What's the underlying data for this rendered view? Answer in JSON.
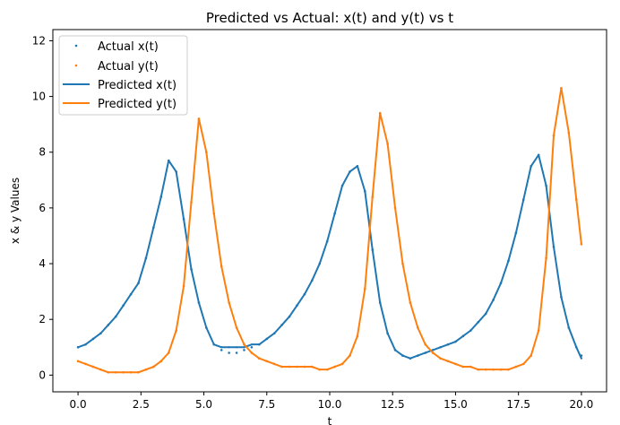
{
  "chart_data": {
    "type": "scatter",
    "title": "Predicted vs Actual: x(t) and y(t) vs t",
    "xlabel": "t",
    "ylabel": "x & y Values",
    "xlim": [
      -1.0,
      21.0
    ],
    "ylim": [
      -0.6,
      12.4
    ],
    "xticks": [
      0.0,
      2.5,
      5.0,
      7.5,
      10.0,
      12.5,
      15.0,
      17.5,
      20.0
    ],
    "xtick_labels": [
      "0.0",
      "2.5",
      "5.0",
      "7.5",
      "10.0",
      "12.5",
      "15.0",
      "17.5",
      "20.0"
    ],
    "yticks": [
      0,
      2,
      4,
      6,
      8,
      10,
      12
    ],
    "ytick_labels": [
      "0",
      "2",
      "4",
      "6",
      "8",
      "10",
      "12"
    ],
    "grid": false,
    "legend_position": "top-left",
    "series": [
      {
        "name": "Actual x(t)",
        "kind": "scatter",
        "color": "#1f77b4",
        "points": [
          [
            0.0,
            1.0
          ],
          [
            0.3,
            1.1
          ],
          [
            0.6,
            1.3
          ],
          [
            0.9,
            1.5
          ],
          [
            1.2,
            1.8
          ],
          [
            1.5,
            2.1
          ],
          [
            1.8,
            2.5
          ],
          [
            2.1,
            2.9
          ],
          [
            2.4,
            3.3
          ],
          [
            2.7,
            4.2
          ],
          [
            3.0,
            5.3
          ],
          [
            3.3,
            6.4
          ],
          [
            3.6,
            7.7
          ],
          [
            3.9,
            7.3
          ],
          [
            4.2,
            5.6
          ],
          [
            4.5,
            3.8
          ],
          [
            4.8,
            2.6
          ],
          [
            5.1,
            1.7
          ],
          [
            5.4,
            1.1
          ],
          [
            5.7,
            0.9
          ],
          [
            6.0,
            0.8
          ],
          [
            6.3,
            0.8
          ],
          [
            6.6,
            0.9
          ],
          [
            6.9,
            1.0
          ],
          [
            7.2,
            1.1
          ],
          [
            7.5,
            1.3
          ],
          [
            7.8,
            1.5
          ],
          [
            8.1,
            1.8
          ],
          [
            8.4,
            2.1
          ],
          [
            8.7,
            2.5
          ],
          [
            9.0,
            2.9
          ],
          [
            9.3,
            3.4
          ],
          [
            9.6,
            4.0
          ],
          [
            9.9,
            4.8
          ],
          [
            10.2,
            5.8
          ],
          [
            10.5,
            6.8
          ],
          [
            10.8,
            7.3
          ],
          [
            11.1,
            7.5
          ],
          [
            11.4,
            6.6
          ],
          [
            11.7,
            4.5
          ],
          [
            12.0,
            2.6
          ],
          [
            12.3,
            1.5
          ],
          [
            12.6,
            0.9
          ],
          [
            12.9,
            0.7
          ],
          [
            13.2,
            0.6
          ],
          [
            13.5,
            0.7
          ],
          [
            13.8,
            0.8
          ],
          [
            14.1,
            0.9
          ],
          [
            14.4,
            1.0
          ],
          [
            14.7,
            1.1
          ],
          [
            15.0,
            1.2
          ],
          [
            15.3,
            1.4
          ],
          [
            15.6,
            1.6
          ],
          [
            15.9,
            1.9
          ],
          [
            16.2,
            2.2
          ],
          [
            16.5,
            2.7
          ],
          [
            16.8,
            3.3
          ],
          [
            17.1,
            4.1
          ],
          [
            17.4,
            5.1
          ],
          [
            17.7,
            6.3
          ],
          [
            18.0,
            7.5
          ],
          [
            18.3,
            7.9
          ],
          [
            18.6,
            6.8
          ],
          [
            18.9,
            4.6
          ],
          [
            19.2,
            2.8
          ],
          [
            19.5,
            1.7
          ],
          [
            19.8,
            1.0
          ],
          [
            20.0,
            0.7
          ]
        ]
      },
      {
        "name": "Actual y(t)",
        "kind": "scatter",
        "color": "#ff7f0e",
        "points": [
          [
            0.0,
            0.5
          ],
          [
            0.3,
            0.4
          ],
          [
            0.6,
            0.3
          ],
          [
            0.9,
            0.2
          ],
          [
            1.2,
            0.1
          ],
          [
            1.5,
            0.1
          ],
          [
            1.8,
            0.1
          ],
          [
            2.1,
            0.1
          ],
          [
            2.4,
            0.1
          ],
          [
            2.7,
            0.2
          ],
          [
            3.0,
            0.3
          ],
          [
            3.3,
            0.5
          ],
          [
            3.6,
            0.8
          ],
          [
            3.9,
            1.6
          ],
          [
            4.2,
            3.2
          ],
          [
            4.5,
            6.2
          ],
          [
            4.8,
            9.2
          ],
          [
            5.1,
            8.0
          ],
          [
            5.4,
            5.8
          ],
          [
            5.7,
            3.9
          ],
          [
            6.0,
            2.6
          ],
          [
            6.3,
            1.7
          ],
          [
            6.6,
            1.1
          ],
          [
            6.9,
            0.8
          ],
          [
            7.2,
            0.6
          ],
          [
            7.5,
            0.5
          ],
          [
            7.8,
            0.4
          ],
          [
            8.1,
            0.3
          ],
          [
            8.4,
            0.3
          ],
          [
            8.7,
            0.3
          ],
          [
            9.0,
            0.3
          ],
          [
            9.3,
            0.3
          ],
          [
            9.6,
            0.2
          ],
          [
            9.9,
            0.2
          ],
          [
            10.2,
            0.3
          ],
          [
            10.5,
            0.4
          ],
          [
            10.8,
            0.7
          ],
          [
            11.1,
            1.4
          ],
          [
            11.4,
            3.1
          ],
          [
            11.7,
            6.4
          ],
          [
            12.0,
            9.4
          ],
          [
            12.3,
            8.3
          ],
          [
            12.6,
            6.0
          ],
          [
            12.9,
            4.0
          ],
          [
            13.2,
            2.6
          ],
          [
            13.5,
            1.7
          ],
          [
            13.8,
            1.1
          ],
          [
            14.1,
            0.8
          ],
          [
            14.4,
            0.6
          ],
          [
            14.7,
            0.5
          ],
          [
            15.0,
            0.4
          ],
          [
            15.3,
            0.3
          ],
          [
            15.6,
            0.3
          ],
          [
            15.9,
            0.2
          ],
          [
            16.2,
            0.2
          ],
          [
            16.5,
            0.2
          ],
          [
            16.8,
            0.2
          ],
          [
            17.1,
            0.2
          ],
          [
            17.4,
            0.3
          ],
          [
            17.7,
            0.4
          ],
          [
            18.0,
            0.7
          ],
          [
            18.3,
            1.6
          ],
          [
            18.6,
            4.2
          ],
          [
            18.9,
            8.6
          ],
          [
            19.2,
            10.3
          ],
          [
            19.5,
            8.7
          ],
          [
            19.8,
            6.3
          ],
          [
            20.0,
            4.7
          ]
        ]
      },
      {
        "name": "Predicted x(t)",
        "kind": "line",
        "color": "#1f77b4",
        "points": [
          [
            0.0,
            1.0
          ],
          [
            0.3,
            1.1
          ],
          [
            0.6,
            1.3
          ],
          [
            0.9,
            1.5
          ],
          [
            1.2,
            1.8
          ],
          [
            1.5,
            2.1
          ],
          [
            1.8,
            2.5
          ],
          [
            2.1,
            2.9
          ],
          [
            2.4,
            3.3
          ],
          [
            2.7,
            4.2
          ],
          [
            3.0,
            5.3
          ],
          [
            3.3,
            6.4
          ],
          [
            3.6,
            7.7
          ],
          [
            3.9,
            7.3
          ],
          [
            4.2,
            5.6
          ],
          [
            4.5,
            3.8
          ],
          [
            4.8,
            2.6
          ],
          [
            5.1,
            1.7
          ],
          [
            5.4,
            1.1
          ],
          [
            5.7,
            1.0
          ],
          [
            6.0,
            1.0
          ],
          [
            6.3,
            1.0
          ],
          [
            6.6,
            1.0
          ],
          [
            6.9,
            1.1
          ],
          [
            7.2,
            1.1
          ],
          [
            7.5,
            1.3
          ],
          [
            7.8,
            1.5
          ],
          [
            8.1,
            1.8
          ],
          [
            8.4,
            2.1
          ],
          [
            8.7,
            2.5
          ],
          [
            9.0,
            2.9
          ],
          [
            9.3,
            3.4
          ],
          [
            9.6,
            4.0
          ],
          [
            9.9,
            4.8
          ],
          [
            10.2,
            5.8
          ],
          [
            10.5,
            6.8
          ],
          [
            10.8,
            7.3
          ],
          [
            11.1,
            7.5
          ],
          [
            11.4,
            6.6
          ],
          [
            11.7,
            4.5
          ],
          [
            12.0,
            2.6
          ],
          [
            12.3,
            1.5
          ],
          [
            12.6,
            0.9
          ],
          [
            12.9,
            0.7
          ],
          [
            13.2,
            0.6
          ],
          [
            13.5,
            0.7
          ],
          [
            13.8,
            0.8
          ],
          [
            14.1,
            0.9
          ],
          [
            14.4,
            1.0
          ],
          [
            14.7,
            1.1
          ],
          [
            15.0,
            1.2
          ],
          [
            15.3,
            1.4
          ],
          [
            15.6,
            1.6
          ],
          [
            15.9,
            1.9
          ],
          [
            16.2,
            2.2
          ],
          [
            16.5,
            2.7
          ],
          [
            16.8,
            3.3
          ],
          [
            17.1,
            4.1
          ],
          [
            17.4,
            5.1
          ],
          [
            17.7,
            6.3
          ],
          [
            18.0,
            7.5
          ],
          [
            18.3,
            7.9
          ],
          [
            18.6,
            6.8
          ],
          [
            18.9,
            4.6
          ],
          [
            19.2,
            2.8
          ],
          [
            19.5,
            1.7
          ],
          [
            19.8,
            1.0
          ],
          [
            20.0,
            0.6
          ]
        ]
      },
      {
        "name": "Predicted y(t)",
        "kind": "line",
        "color": "#ff7f0e",
        "points": [
          [
            0.0,
            0.5
          ],
          [
            0.3,
            0.4
          ],
          [
            0.6,
            0.3
          ],
          [
            0.9,
            0.2
          ],
          [
            1.2,
            0.1
          ],
          [
            1.5,
            0.1
          ],
          [
            1.8,
            0.1
          ],
          [
            2.1,
            0.1
          ],
          [
            2.4,
            0.1
          ],
          [
            2.7,
            0.2
          ],
          [
            3.0,
            0.3
          ],
          [
            3.3,
            0.5
          ],
          [
            3.6,
            0.8
          ],
          [
            3.9,
            1.6
          ],
          [
            4.2,
            3.2
          ],
          [
            4.5,
            6.2
          ],
          [
            4.8,
            9.2
          ],
          [
            5.1,
            8.0
          ],
          [
            5.4,
            5.8
          ],
          [
            5.7,
            3.9
          ],
          [
            6.0,
            2.6
          ],
          [
            6.3,
            1.7
          ],
          [
            6.6,
            1.1
          ],
          [
            6.9,
            0.8
          ],
          [
            7.2,
            0.6
          ],
          [
            7.5,
            0.5
          ],
          [
            7.8,
            0.4
          ],
          [
            8.1,
            0.3
          ],
          [
            8.4,
            0.3
          ],
          [
            8.7,
            0.3
          ],
          [
            9.0,
            0.3
          ],
          [
            9.3,
            0.3
          ],
          [
            9.6,
            0.2
          ],
          [
            9.9,
            0.2
          ],
          [
            10.2,
            0.3
          ],
          [
            10.5,
            0.4
          ],
          [
            10.8,
            0.7
          ],
          [
            11.1,
            1.4
          ],
          [
            11.4,
            3.1
          ],
          [
            11.7,
            6.4
          ],
          [
            12.0,
            9.4
          ],
          [
            12.3,
            8.3
          ],
          [
            12.6,
            6.0
          ],
          [
            12.9,
            4.0
          ],
          [
            13.2,
            2.6
          ],
          [
            13.5,
            1.7
          ],
          [
            13.8,
            1.1
          ],
          [
            14.1,
            0.8
          ],
          [
            14.4,
            0.6
          ],
          [
            14.7,
            0.5
          ],
          [
            15.0,
            0.4
          ],
          [
            15.3,
            0.3
          ],
          [
            15.6,
            0.3
          ],
          [
            15.9,
            0.2
          ],
          [
            16.2,
            0.2
          ],
          [
            16.5,
            0.2
          ],
          [
            16.8,
            0.2
          ],
          [
            17.1,
            0.2
          ],
          [
            17.4,
            0.3
          ],
          [
            17.7,
            0.4
          ],
          [
            18.0,
            0.7
          ],
          [
            18.3,
            1.6
          ],
          [
            18.6,
            4.2
          ],
          [
            18.9,
            8.6
          ],
          [
            19.2,
            10.3
          ],
          [
            19.5,
            8.7
          ],
          [
            19.8,
            6.3
          ],
          [
            20.0,
            4.7
          ]
        ]
      }
    ]
  }
}
